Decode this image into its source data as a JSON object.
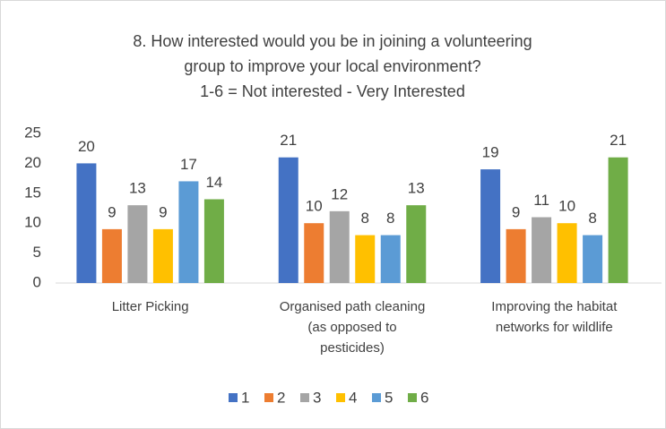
{
  "chart_data": {
    "type": "bar",
    "title": "8. How interested would you be in joining a volunteering group to improve your local environment?",
    "subtitle": "1-6 = Not interested - Very Interested",
    "categories": [
      "Litter Picking",
      "Organised path cleaning (as opposed to pesticides)",
      "Improving the habitat networks for wildlife"
    ],
    "series": [
      {
        "name": "1",
        "color": "#4472c4",
        "values": [
          20,
          21,
          19
        ]
      },
      {
        "name": "2",
        "color": "#ed7d31",
        "values": [
          9,
          10,
          9
        ]
      },
      {
        "name": "3",
        "color": "#a5a5a5",
        "values": [
          13,
          12,
          11
        ]
      },
      {
        "name": "4",
        "color": "#ffc000",
        "values": [
          9,
          8,
          10
        ]
      },
      {
        "name": "5",
        "color": "#5b9bd5",
        "values": [
          17,
          8,
          8
        ]
      },
      {
        "name": "6",
        "color": "#70ad47",
        "values": [
          14,
          13,
          21
        ]
      }
    ],
    "ylim": [
      0,
      25
    ],
    "yticks": [
      0,
      5,
      10,
      15,
      20,
      25
    ],
    "grid": false,
    "legend": "bottom"
  }
}
